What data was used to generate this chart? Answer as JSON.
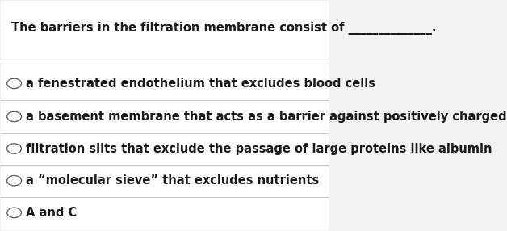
{
  "question_plain": "The barriers in the filtration membrane consist of ",
  "question_blank": "______________.",
  "options": [
    "a fenestrated endothelium that excludes blood cells",
    "a basement membrane that acts as a barrier against positively charged proteins",
    "filtration slits that exclude the passage of large proteins like albumin",
    "a “molecular sieve” that excludes nutrients",
    "A and C"
  ],
  "background_color": "#f2f2f2",
  "box_color": "#ffffff",
  "text_color": "#1a1a1a",
  "line_color": "#cccccc",
  "circle_color": "#666666",
  "question_fontsize": 10.5,
  "option_fontsize": 10.5
}
